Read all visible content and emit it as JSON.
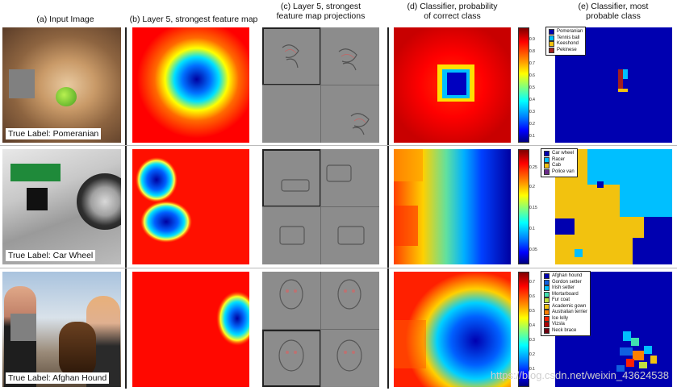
{
  "headers": {
    "a": "(a) Input Image",
    "b": "(b) Layer 5, strongest feature map",
    "c": [
      "(c) Layer 5, strongest",
      "feature map projections"
    ],
    "d": [
      "(d) Classifier, probability",
      "of correct class"
    ],
    "e": [
      "(e) Classifier, most",
      "probable class"
    ]
  },
  "rows": [
    {
      "true_label": "True Label: Pomeranian",
      "colorbar_ticks": [
        "0.9",
        "0.8",
        "0.7",
        "0.6",
        "0.5",
        "0.4",
        "0.3",
        "0.2",
        "0.1"
      ],
      "legend": [
        {
          "label": "Pomeranian",
          "color": "#0000b0"
        },
        {
          "label": "Tennis ball",
          "color": "#00bfff"
        },
        {
          "label": "Keeshond",
          "color": "#f2c20f"
        },
        {
          "label": "Pekinese",
          "color": "#a02020"
        }
      ]
    },
    {
      "true_label": "True Label: Car Wheel",
      "colorbar_ticks": [
        "0.25",
        "0.2",
        "0.15",
        "0.1",
        "0.05"
      ],
      "legend": [
        {
          "label": "Car wheel",
          "color": "#0000b0"
        },
        {
          "label": "Racer",
          "color": "#00bfff"
        },
        {
          "label": "Cab",
          "color": "#f2c20f"
        },
        {
          "label": "Police van",
          "color": "#6a2a8a"
        }
      ]
    },
    {
      "true_label": "True Label: Afghan Hound",
      "colorbar_ticks": [
        "0.7",
        "0.6",
        "0.5",
        "0.4",
        "0.3",
        "0.2",
        "0.1"
      ],
      "legend": [
        {
          "label": "Afghan hound",
          "color": "#0000b0"
        },
        {
          "label": "Gordon setter",
          "color": "#1060e0"
        },
        {
          "label": "Irish setter",
          "color": "#00bfff"
        },
        {
          "label": "Mortarboard",
          "color": "#40e0b0"
        },
        {
          "label": "Fur coat",
          "color": "#c0e040"
        },
        {
          "label": "Academic gown",
          "color": "#f2c20f"
        },
        {
          "label": "Australian terrier",
          "color": "#ff8000"
        },
        {
          "label": "Ice lolly",
          "color": "#ff2000"
        },
        {
          "label": "Vizsla",
          "color": "#b00000"
        },
        {
          "label": "Neck brace",
          "color": "#700010"
        }
      ]
    }
  ],
  "watermark": "https://blog.csdn.net/weixin_43624538"
}
